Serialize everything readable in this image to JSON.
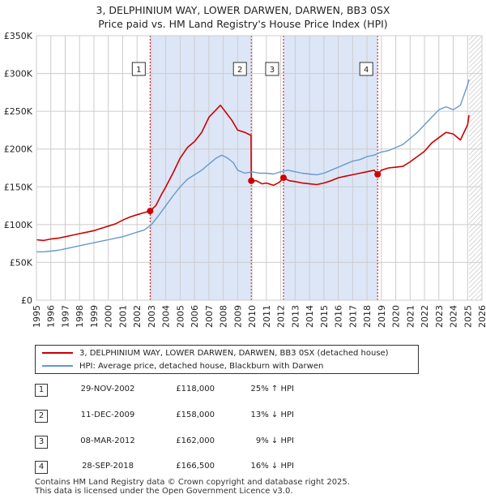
{
  "title_line1": "3, DELPHINIUM WAY, LOWER DARWEN, DARWEN, BB3 0SX",
  "title_line2": "Price paid vs. HM Land Registry's House Price Index (HPI)",
  "colors": {
    "property": "#cc0000",
    "hpi": "#6699cc",
    "shade": "#dde6f7",
    "marker_line": "#cc0000"
  },
  "chart_data": {
    "type": "line",
    "x_range": [
      1995,
      2026
    ],
    "ylim": [
      0,
      350000
    ],
    "y_ticks": [
      {
        "value": 0,
        "label": "£0"
      },
      {
        "value": 50000,
        "label": "£50K"
      },
      {
        "value": 100000,
        "label": "£100K"
      },
      {
        "value": 150000,
        "label": "£150K"
      },
      {
        "value": 200000,
        "label": "£200K"
      },
      {
        "value": 250000,
        "label": "£250K"
      },
      {
        "value": 300000,
        "label": "£300K"
      },
      {
        "value": 350000,
        "label": "£350K"
      }
    ],
    "x_ticks": [
      "1995",
      "1996",
      "1997",
      "1998",
      "1999",
      "2000",
      "2001",
      "2002",
      "2003",
      "2004",
      "2005",
      "2006",
      "2007",
      "2008",
      "2009",
      "2010",
      "2011",
      "2012",
      "2013",
      "2014",
      "2015",
      "2016",
      "2017",
      "2018",
      "2019",
      "2020",
      "2021",
      "2022",
      "2023",
      "2024",
      "2025",
      "2026"
    ],
    "shaded_spans": [
      [
        2002.91,
        2009.95
      ],
      [
        2012.19,
        2018.74
      ]
    ],
    "future_hatch_from": 2025.1,
    "series": [
      {
        "name": "property",
        "x": [
          1995,
          1995.5,
          1996,
          1996.5,
          1997,
          1997.5,
          1998,
          1998.5,
          1999,
          1999.5,
          2000,
          2000.5,
          2001,
          2001.5,
          2002,
          2002.5,
          2002.91,
          2003.3,
          2003.7,
          2004,
          2004.5,
          2005,
          2005.5,
          2006,
          2006.5,
          2007,
          2007.5,
          2007.8,
          2008.2,
          2008.6,
          2009,
          2009.5,
          2009.93,
          2009.95,
          2010.3,
          2010.7,
          2011,
          2011.5,
          2011.9,
          2012.19,
          2012.6,
          2013,
          2013.5,
          2014,
          2014.5,
          2015,
          2015.5,
          2016,
          2016.5,
          2017,
          2017.5,
          2018,
          2018.5,
          2018.74,
          2019,
          2019.5,
          2020,
          2020.5,
          2021,
          2021.5,
          2022,
          2022.5,
          2023,
          2023.5,
          2024,
          2024.5,
          2025,
          2025.1
        ],
        "values": [
          80000,
          79000,
          81000,
          82000,
          84000,
          86000,
          88000,
          90000,
          92000,
          95000,
          98000,
          101000,
          106000,
          110000,
          113000,
          116000,
          118000,
          125000,
          140000,
          150000,
          168000,
          188000,
          202000,
          210000,
          222000,
          242000,
          252000,
          258000,
          248000,
          238000,
          225000,
          222000,
          218000,
          158000,
          158000,
          154000,
          155000,
          152000,
          156000,
          162000,
          158000,
          157000,
          155000,
          154000,
          153000,
          155000,
          158000,
          162000,
          164000,
          166000,
          168000,
          170000,
          172000,
          166500,
          172000,
          175000,
          176000,
          177000,
          183000,
          190000,
          197000,
          208000,
          215000,
          222000,
          220000,
          212000,
          232000,
          245000
        ]
      },
      {
        "name": "hpi",
        "x": [
          1995,
          1995.5,
          1996,
          1996.5,
          1997,
          1997.5,
          1998,
          1998.5,
          1999,
          1999.5,
          2000,
          2000.5,
          2001,
          2001.5,
          2002,
          2002.5,
          2003,
          2003.5,
          2004,
          2004.5,
          2005,
          2005.5,
          2006,
          2006.5,
          2007,
          2007.5,
          2007.9,
          2008.3,
          2008.7,
          2009,
          2009.5,
          2010,
          2010.5,
          2011,
          2011.5,
          2012,
          2012.5,
          2013,
          2013.5,
          2014,
          2014.5,
          2015,
          2015.5,
          2016,
          2016.5,
          2017,
          2017.5,
          2018,
          2018.5,
          2019,
          2019.5,
          2020,
          2020.5,
          2021,
          2021.5,
          2022,
          2022.5,
          2023,
          2023.5,
          2024,
          2024.5,
          2025,
          2025.1
        ],
        "values": [
          64000,
          64000,
          65000,
          66000,
          68000,
          70000,
          72000,
          74000,
          76000,
          78000,
          80000,
          82000,
          84000,
          87000,
          90000,
          93000,
          100000,
          112000,
          125000,
          138000,
          150000,
          160000,
          166000,
          172000,
          180000,
          188000,
          192000,
          188000,
          182000,
          172000,
          168000,
          170000,
          168000,
          168000,
          167000,
          170000,
          172000,
          170000,
          168000,
          167000,
          166000,
          168000,
          172000,
          176000,
          180000,
          184000,
          186000,
          190000,
          192000,
          196000,
          198000,
          202000,
          206000,
          214000,
          222000,
          232000,
          242000,
          252000,
          256000,
          252000,
          258000,
          285000,
          292000
        ]
      }
    ],
    "sales": [
      {
        "n": "1",
        "x": 2002.91,
        "value": 118000
      },
      {
        "n": "2",
        "x": 2009.95,
        "value": 158000
      },
      {
        "n": "3",
        "x": 2012.19,
        "value": 162000
      },
      {
        "n": "4",
        "x": 2018.74,
        "value": 166500
      }
    ]
  },
  "legend": {
    "property_label": "3, DELPHINIUM WAY, LOWER DARWEN, DARWEN, BB3 0SX (detached house)",
    "hpi_label": "HPI: Average price, detached house, Blackburn with Darwen"
  },
  "transactions": [
    {
      "n": "1",
      "date": "29-NOV-2002",
      "price": "£118,000",
      "hpi": "25% ↑ HPI"
    },
    {
      "n": "2",
      "date": "11-DEC-2009",
      "price": "£158,000",
      "hpi": "13% ↓ HPI"
    },
    {
      "n": "3",
      "date": "08-MAR-2012",
      "price": "£162,000",
      "hpi": "9% ↓ HPI"
    },
    {
      "n": "4",
      "date": "28-SEP-2018",
      "price": "£166,500",
      "hpi": "16% ↓ HPI"
    }
  ],
  "footer": {
    "line1": "Contains HM Land Registry data © Crown copyright and database right 2025.",
    "line2": "This data is licensed under the Open Government Licence v3.0."
  }
}
